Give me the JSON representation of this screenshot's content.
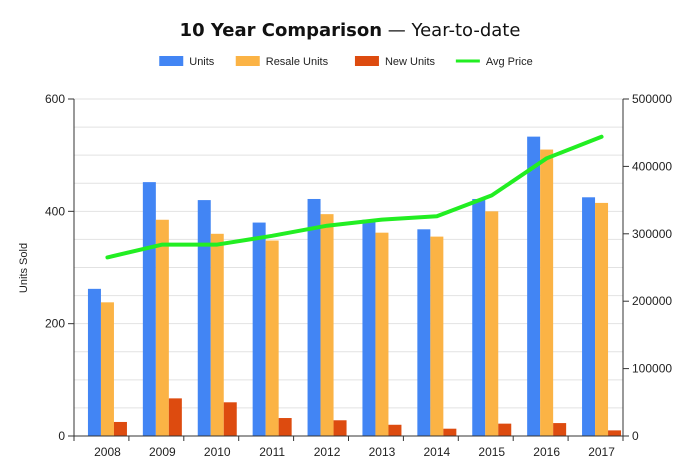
{
  "chart_data": {
    "type": "bar",
    "title": "10 Year Comparison",
    "subtitle": "Year-to-date",
    "title_separator": " — ",
    "ylabel": "Units Sold",
    "ylim": [
      0,
      600
    ],
    "y_ticks": [
      "0",
      "200",
      "400",
      "600"
    ],
    "y2lim": [
      0,
      500000
    ],
    "y2_ticks": [
      "0",
      "100000",
      "200000",
      "300000",
      "400000",
      "500000"
    ],
    "categories": [
      "2008",
      "2009",
      "2010",
      "2011",
      "2012",
      "2013",
      "2014",
      "2015",
      "2016",
      "2017"
    ],
    "series": [
      {
        "name": "Units",
        "type": "bar",
        "axis": "left",
        "color": "#4285F4",
        "values": [
          262,
          452,
          420,
          380,
          422,
          385,
          368,
          422,
          533,
          425
        ]
      },
      {
        "name": "Resale Units",
        "type": "bar",
        "axis": "left",
        "color": "#FBB345",
        "values": [
          238,
          385,
          360,
          348,
          395,
          362,
          355,
          400,
          510,
          415
        ]
      },
      {
        "name": "New Units",
        "type": "bar",
        "axis": "left",
        "color": "#DD4B0F",
        "values": [
          25,
          67,
          60,
          32,
          28,
          20,
          13,
          22,
          23,
          10
        ]
      },
      {
        "name": "Avg Price",
        "type": "line",
        "axis": "right",
        "color": "#22EE22",
        "values": [
          265000,
          284000,
          284000,
          297000,
          312000,
          321000,
          326000,
          357000,
          412000,
          444000
        ]
      }
    ],
    "grid": true,
    "legend_position": "top-center"
  }
}
